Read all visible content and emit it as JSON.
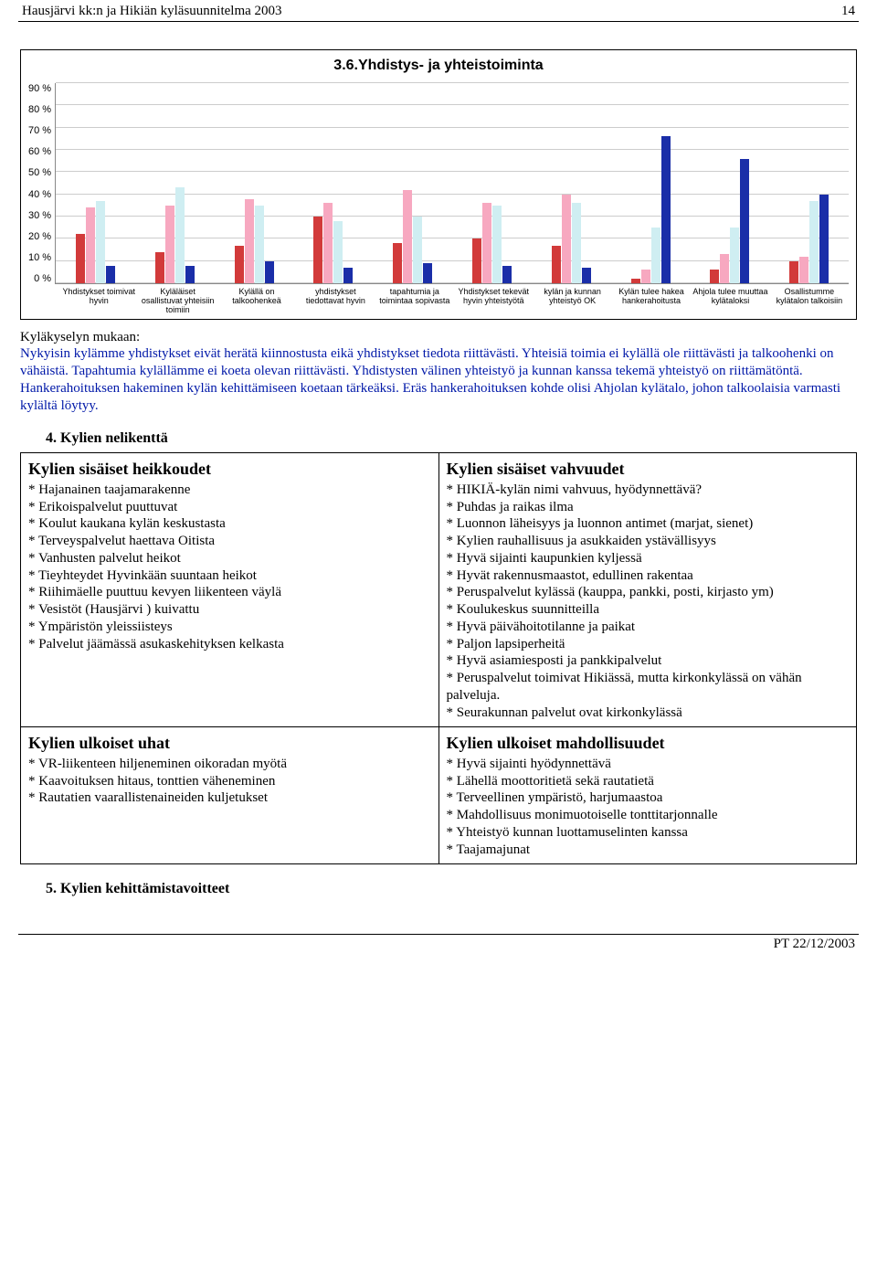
{
  "header": {
    "title": "Hausjärvi kk:n ja Hikiän kyläsuunnitelma 2003",
    "page": "14"
  },
  "chart": {
    "title": "3.6.Yhdistys- ja yhteistoiminta",
    "type": "bar",
    "ylim": [
      0,
      90
    ],
    "ytick_step": 10,
    "yticks": [
      "90 %",
      "80 %",
      "70 %",
      "60 %",
      "50 %",
      "40 %",
      "30 %",
      "20 %",
      "10 %",
      "0 %"
    ],
    "grid_color": "#cccccc",
    "axis_color": "#888888",
    "background_color": "#ffffff",
    "series_colors": [
      "#d23a3a",
      "#f7a8c0",
      "#cfeef2",
      "#1a2ea8"
    ],
    "categories": [
      {
        "label": "Yhdistykset toimivat hyvin",
        "values": [
          22,
          34,
          37,
          8
        ]
      },
      {
        "label": "Kyläläiset osallistuvat yhteisiin toimiin",
        "values": [
          14,
          35,
          43,
          8
        ]
      },
      {
        "label": "Kylällä on talkoohenkeä",
        "values": [
          17,
          38,
          35,
          10
        ]
      },
      {
        "label": "yhdistykset tiedottavat hyvin",
        "values": [
          30,
          36,
          28,
          7
        ]
      },
      {
        "label": "tapahtumia ja toimintaa sopivasta",
        "values": [
          18,
          42,
          30,
          9
        ]
      },
      {
        "label": "Yhdistykset tekevät hyvin yhteistyötä",
        "values": [
          20,
          36,
          35,
          8
        ]
      },
      {
        "label": "kylän ja kunnan yhteistyö OK",
        "values": [
          17,
          40,
          36,
          7
        ]
      },
      {
        "label": "Kylän tulee hakea hankerahoitusta",
        "values": [
          2,
          6,
          25,
          66
        ]
      },
      {
        "label": "Ahjola tulee muuttaa kylätaloksi",
        "values": [
          6,
          13,
          25,
          56
        ]
      },
      {
        "label": "Osallistumme kylätalon talkoisiin",
        "values": [
          10,
          12,
          37,
          40
        ]
      }
    ]
  },
  "survey": {
    "lead": "Kyläkyselyn mukaan:",
    "text": "Nykyisin kylämme yhdistykset eivät herätä kiinnostusta eikä yhdistykset tiedota riittävästi. Yhteisiä toimia ei kylällä ole riittävästi ja talkoohenki on vähäistä. Tapahtumia kylällämme ei koeta olevan riittävästi. Yhdistysten välinen yhteistyö ja kunnan kanssa tekemä yhteistyö on riittämätöntä. Hankerahoituksen hakeminen kylän kehittämiseen koetaan tärkeäksi. Eräs hankerahoituksen kohde olisi Ahjolan kylätalo, johon talkoolaisia varmasti kylältä löytyy."
  },
  "section4": "4. Kylien nelikenttä",
  "swot": {
    "weak": {
      "title": "Kylien sisäiset heikkoudet",
      "items": [
        "* Hajanainen taajamarakenne",
        "* Erikoispalvelut puuttuvat",
        "* Koulut kaukana kylän keskustasta",
        "* Terveyspalvelut haettava Oitista",
        "* Vanhusten palvelut heikot",
        "* Tieyhteydet Hyvinkään suuntaan heikot",
        "* Riihimäelle puuttuu kevyen liikenteen väylä",
        "* Vesistöt (Hausjärvi ) kuivattu",
        "* Ympäristön yleissiisteys",
        "* Palvelut jäämässä asukaskehityksen kelkasta"
      ]
    },
    "strong": {
      "title": "Kylien sisäiset vahvuudet",
      "items": [
        "* HIKIÄ-kylän nimi vahvuus, hyödynnettävä?",
        "* Puhdas ja raikas ilma",
        "* Luonnon läheisyys ja luonnon antimet (marjat, sienet)",
        "* Kylien rauhallisuus ja asukkaiden ystävällisyys",
        "* Hyvä sijainti kaupunkien kyljessä",
        "* Hyvät rakennusmaastot, edullinen rakentaa",
        "* Peruspalvelut kylässä (kauppa, pankki, posti, kirjasto ym)",
        "* Koulukeskus suunnitteilla",
        "* Hyvä päivähoitotilanne ja paikat",
        "* Paljon lapsiperheitä",
        "* Hyvä asiamiesposti ja pankkipalvelut",
        "* Peruspalvelut toimivat Hikiässä, mutta kirkonkylässä on vähän palveluja.",
        "* Seurakunnan palvelut ovat kirkonkylässä"
      ]
    },
    "threat": {
      "title": "Kylien ulkoiset uhat",
      "items": [
        "* VR-liikenteen hiljeneminen oikoradan myötä",
        "* Kaavoituksen hitaus, tonttien väheneminen",
        "* Rautatien vaarallistenaineiden kuljetukset"
      ]
    },
    "opp": {
      "title": "Kylien ulkoiset mahdollisuudet",
      "items": [
        "* Hyvä sijainti hyödynnettävä",
        "* Lähellä moottoritietä sekä rautatietä",
        "* Terveellinen ympäristö, harjumaastoa",
        "* Mahdollisuus monimuotoiselle tonttitarjonnalle",
        "* Yhteistyö kunnan luottamuselinten kanssa",
        "* Taajamajunat"
      ]
    }
  },
  "section5": "5. Kylien kehittämistavoitteet",
  "footer": "PT 22/12/2003"
}
